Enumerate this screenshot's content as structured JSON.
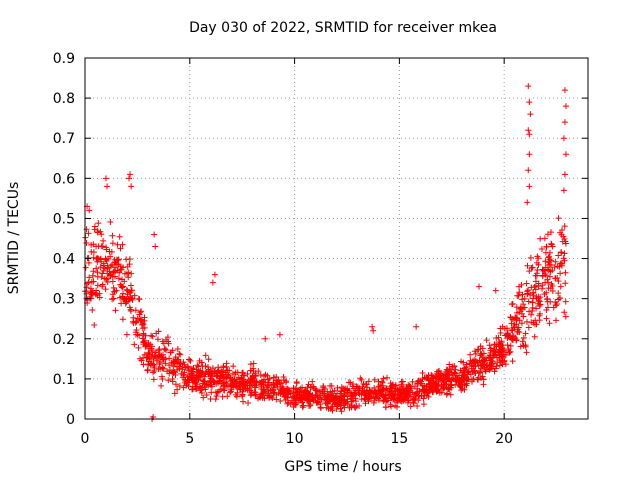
{
  "chart_data": {
    "type": "scatter",
    "title": "Day 030 of 2022, SRMTID for receiver mkea",
    "xlabel": "GPS time / hours",
    "ylabel": "SRMTID / TECUs",
    "xlim": [
      0,
      24
    ],
    "ylim": [
      0,
      0.9
    ],
    "xticks": [
      0,
      5,
      10,
      15,
      20
    ],
    "yticks": [
      0,
      0.1,
      0.2,
      0.3,
      0.4,
      0.5,
      0.6,
      0.7,
      0.8,
      0.9
    ],
    "grid": true,
    "marker": "+",
    "color": "#ff0000",
    "series": [
      {
        "name": "mkea",
        "envelope": {
          "hours": [
            0,
            1,
            2,
            3,
            4,
            5,
            6,
            7,
            8,
            9,
            10,
            11,
            12,
            13,
            14,
            15,
            16,
            17,
            18,
            19,
            20,
            21,
            22,
            23
          ],
          "typical": [
            0.35,
            0.38,
            0.34,
            0.16,
            0.14,
            0.11,
            0.1,
            0.09,
            0.09,
            0.08,
            0.06,
            0.06,
            0.05,
            0.06,
            0.07,
            0.06,
            0.07,
            0.09,
            0.11,
            0.14,
            0.18,
            0.28,
            0.35,
            0.38
          ],
          "spread": [
            0.16,
            0.14,
            0.15,
            0.09,
            0.08,
            0.06,
            0.07,
            0.05,
            0.06,
            0.05,
            0.04,
            0.04,
            0.04,
            0.05,
            0.05,
            0.04,
            0.05,
            0.05,
            0.06,
            0.07,
            0.09,
            0.14,
            0.16,
            0.17
          ]
        },
        "outliers": [
          [
            21.15,
            0.83
          ],
          [
            21.2,
            0.79
          ],
          [
            21.25,
            0.76
          ],
          [
            21.15,
            0.72
          ],
          [
            21.2,
            0.71
          ],
          [
            22.9,
            0.82
          ],
          [
            22.95,
            0.78
          ],
          [
            22.9,
            0.74
          ],
          [
            22.85,
            0.7
          ],
          [
            22.95,
            0.66
          ],
          [
            22.9,
            0.61
          ],
          [
            22.85,
            0.57
          ],
          [
            21.2,
            0.66
          ],
          [
            21.15,
            0.62
          ],
          [
            21.2,
            0.58
          ],
          [
            21.1,
            0.54
          ],
          [
            2.15,
            0.61
          ],
          [
            2.1,
            0.6
          ],
          [
            2.2,
            0.58
          ],
          [
            1.0,
            0.6
          ],
          [
            1.05,
            0.58
          ],
          [
            0.1,
            0.53
          ],
          [
            0.2,
            0.52
          ],
          [
            3.3,
            0.46
          ],
          [
            3.35,
            0.43
          ],
          [
            6.2,
            0.36
          ],
          [
            6.1,
            0.34
          ],
          [
            13.7,
            0.23
          ],
          [
            13.75,
            0.22
          ],
          [
            15.8,
            0.23
          ],
          [
            18.8,
            0.33
          ],
          [
            19.6,
            0.32
          ],
          [
            3.2,
            0.0
          ],
          [
            3.25,
            0.005
          ],
          [
            9.3,
            0.21
          ],
          [
            8.6,
            0.2
          ]
        ]
      }
    ]
  }
}
